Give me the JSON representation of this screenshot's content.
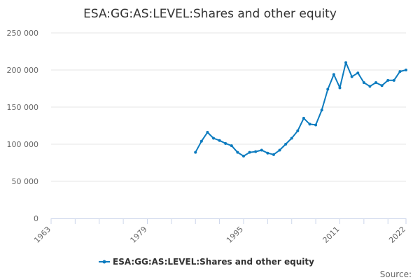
{
  "title": "ESA:GG:AS:LEVEL:Shares and other equity",
  "source_label": "Source:",
  "colors": {
    "series": "#0c7bbf",
    "grid": "#e6e6e6",
    "text": "#333333",
    "axis": "#ccd6eb"
  },
  "chart_data": {
    "type": "line",
    "title": "ESA:GG:AS:LEVEL:Shares and other equity",
    "xlabel": "",
    "ylabel": "",
    "xlim": [
      1963,
      2022
    ],
    "ylim": [
      0,
      250000
    ],
    "x_tick_labels": [
      "1963",
      "1979",
      "1995",
      "2011",
      "2022"
    ],
    "y_tick_labels": [
      "0",
      "50 000",
      "100 000",
      "150 000",
      "200 000",
      "250 000"
    ],
    "grid": true,
    "legend": "bottom-center",
    "series": [
      {
        "name": "ESA:GG:AS:LEVEL:Shares and other equity",
        "x": [
          1987,
          1988,
          1989,
          1990,
          1991,
          1992,
          1993,
          1994,
          1995,
          1996,
          1997,
          1998,
          1999,
          2000,
          2001,
          2002,
          2003,
          2004,
          2005,
          2006,
          2007,
          2008,
          2009,
          2010,
          2011,
          2012,
          2013,
          2014,
          2015,
          2016,
          2017,
          2018,
          2019,
          2020,
          2021,
          2022
        ],
        "values": [
          89000,
          104000,
          116000,
          108000,
          105000,
          101000,
          98000,
          89000,
          84000,
          89000,
          90000,
          92000,
          88000,
          86000,
          92000,
          100000,
          108000,
          118000,
          135000,
          127000,
          126000,
          146000,
          174000,
          194000,
          176000,
          210000,
          191000,
          196000,
          183000,
          178000,
          183000,
          179000,
          186000,
          186000,
          198000,
          200000
        ]
      }
    ]
  }
}
